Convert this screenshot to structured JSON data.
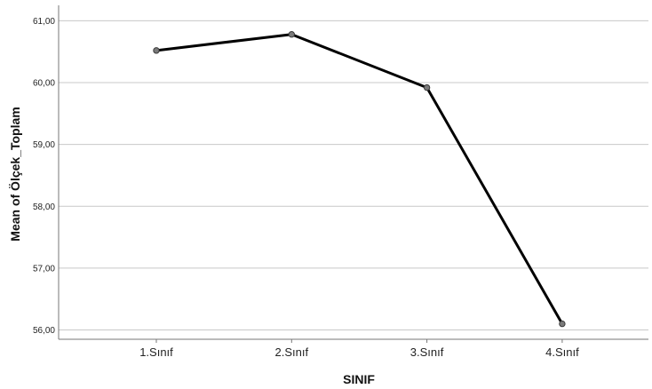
{
  "chart_data": {
    "type": "line",
    "xlabel": "SINIF",
    "ylabel": "Mean of Ölçek_Toplam",
    "categories": [
      "1.Sınıf",
      "2.Sınıf",
      "3.Sınıf",
      "4.Sınıf"
    ],
    "series": [
      {
        "values": [
          60.52,
          60.78,
          59.92,
          56.1
        ]
      }
    ],
    "yticks": [
      "56,00",
      "57,00",
      "58,00",
      "59,00",
      "60,00",
      "61,00"
    ],
    "ylim": [
      55.85,
      61.25
    ],
    "grid": true,
    "legend": "none",
    "colors": {
      "line": "#000000",
      "marker": "#7a7a7a",
      "grid": "#c8c8c8",
      "axis": "#777777"
    }
  }
}
